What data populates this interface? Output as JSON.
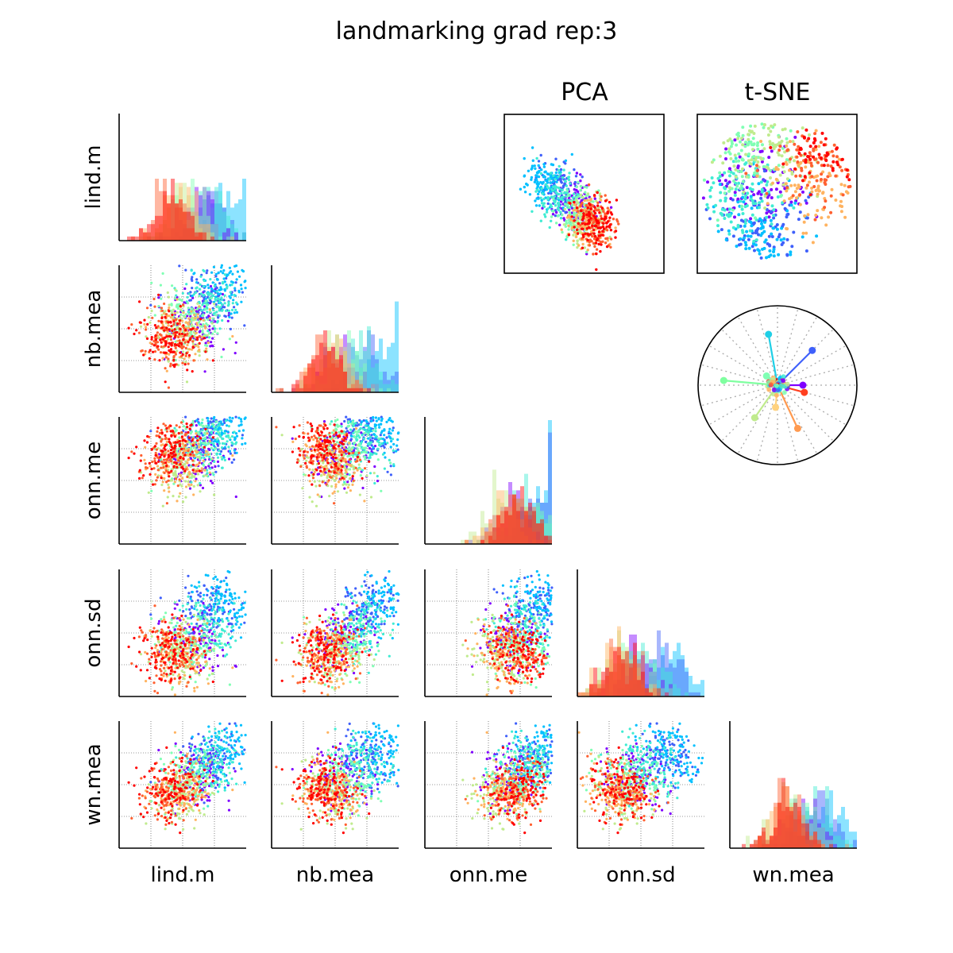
{
  "figure": {
    "title": "landmarking grad rep:3",
    "pca_title": "PCA",
    "tsne_title": "t-SNE",
    "variables": [
      "lind.m",
      "nb.mea",
      "onn.me",
      "onn.sd",
      "wn.mea"
    ]
  },
  "colors": [
    "#7f00ff",
    "#3f60fb",
    "#00c0ff",
    "#40ecd3",
    "#80ffb4",
    "#c0eb8d",
    "#ffb360",
    "#ff6030",
    "#ff0000"
  ],
  "chart_data": {
    "type": "scatter",
    "title": "landmarking grad rep:3",
    "variables": [
      "lind.m",
      "nb.mea",
      "onn.me",
      "onn.sd",
      "wn.mea"
    ],
    "series_count": 9,
    "gridlines": true,
    "approx_group_means": {
      "description": "approximate normalized (0-1) means per color group, low->high index",
      "lind.m": [
        0.62,
        0.72,
        0.85,
        0.7,
        0.55,
        0.5,
        0.48,
        0.4,
        0.4
      ],
      "nb.mea": [
        0.55,
        0.75,
        0.85,
        0.72,
        0.55,
        0.48,
        0.45,
        0.42,
        0.42
      ],
      "onn.me": [
        0.7,
        0.85,
        0.9,
        0.8,
        0.78,
        0.6,
        0.65,
        0.72,
        0.75
      ],
      "onn.sd": [
        0.45,
        0.7,
        0.75,
        0.55,
        0.4,
        0.35,
        0.3,
        0.35,
        0.35
      ],
      "wn.mea": [
        0.55,
        0.7,
        0.75,
        0.65,
        0.55,
        0.45,
        0.45,
        0.45,
        0.45
      ]
    },
    "radial_loadings": [
      {
        "angle_deg": 45,
        "length": 0.62
      },
      {
        "angle_deg": 100,
        "length": 0.65
      },
      {
        "angle_deg": 175,
        "length": 0.68
      },
      {
        "angle_deg": 235,
        "length": 0.5
      },
      {
        "angle_deg": 265,
        "length": 0.28
      },
      {
        "angle_deg": 295,
        "length": 0.6
      },
      {
        "angle_deg": 345,
        "length": 0.35
      },
      {
        "angle_deg": 0,
        "length": 0.32
      },
      {
        "angle_deg": 140,
        "length": 0.18
      }
    ]
  }
}
